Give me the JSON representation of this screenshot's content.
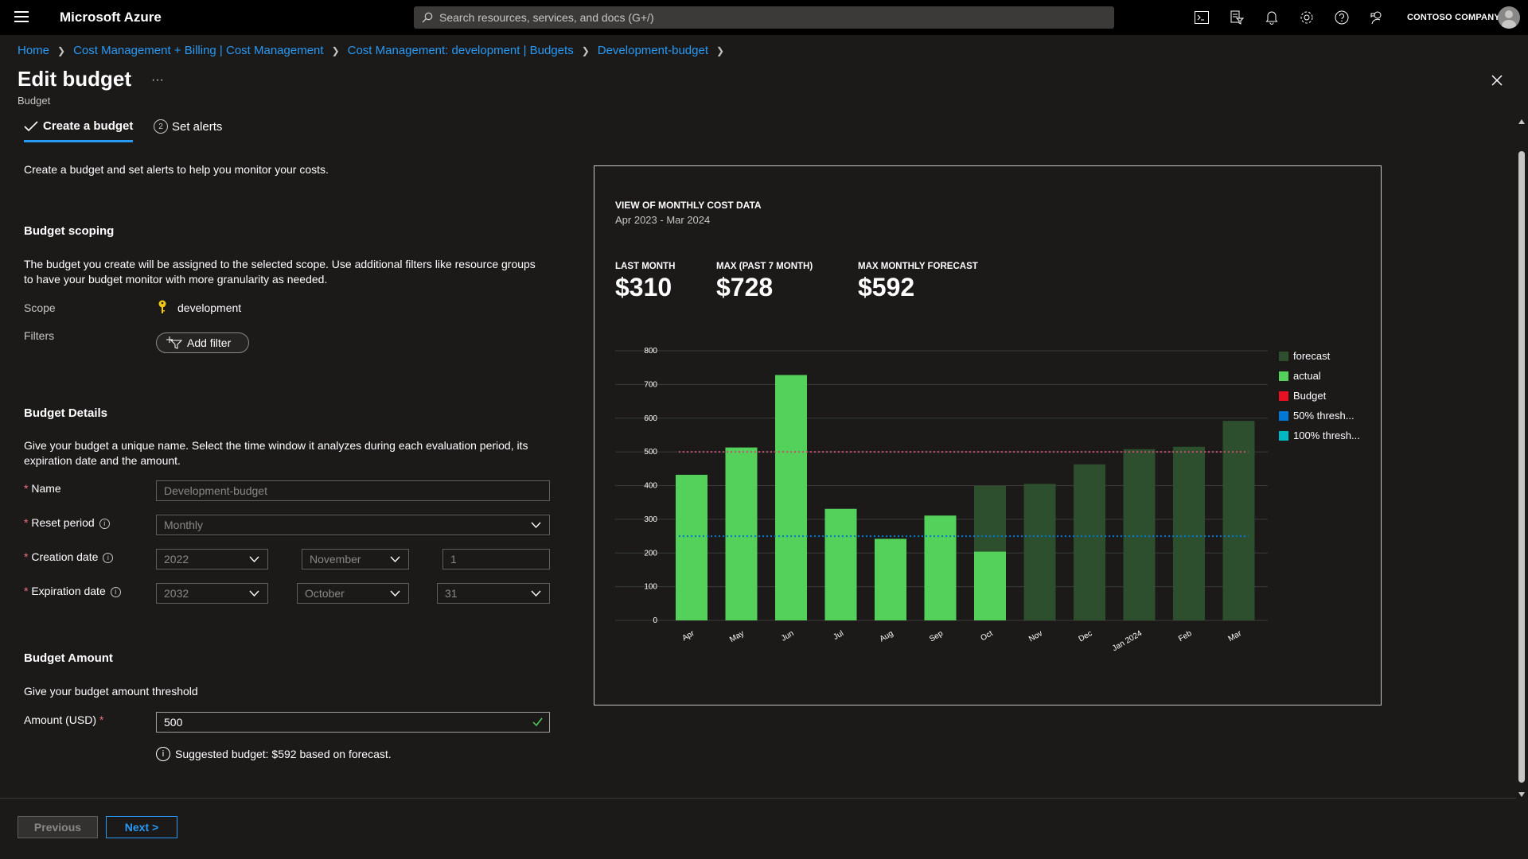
{
  "topbar": {
    "brand": "Microsoft Azure",
    "search_placeholder": "Search resources, services, and docs (G+/)",
    "tenant": "CONTOSO COMPANY",
    "icons": [
      "cloud-shell-icon",
      "directory-filter-icon",
      "notifications-icon",
      "settings-icon",
      "help-icon",
      "feedback-icon"
    ]
  },
  "breadcrumb": [
    "Home",
    "Cost Management + Billing | Cost Management",
    "Cost Management: development | Budgets",
    "Development-budget"
  ],
  "page": {
    "title": "Edit budget",
    "more": "···",
    "subtitle": "Budget"
  },
  "tabs": [
    {
      "label": "Create a budget",
      "state": "completed"
    },
    {
      "label": "Set alerts",
      "step": "2"
    }
  ],
  "intro": "Create a budget and set alerts to help you monitor your costs.",
  "scoping": {
    "title": "Budget scoping",
    "description_line1": "The budget you create will be assigned to the selected scope. Use additional filters like resource groups",
    "description_line2": "to have your budget monitor with more granularity as needed.",
    "scope_label": "Scope",
    "scope_value": "development",
    "filters_label": "Filters",
    "add_filter": "Add filter"
  },
  "details": {
    "title": "Budget Details",
    "description_line1": "Give your budget a unique name. Select the time window it analyzes during each evaluation period, its",
    "description_line2": "expiration date and the amount.",
    "name_label": "Name",
    "name_value": "Development-budget",
    "reset_label": "Reset period",
    "reset_value": "Monthly",
    "creation_label": "Creation date",
    "creation_year": "2022",
    "creation_month": "November",
    "creation_day": "1",
    "expiration_label": "Expiration date",
    "expiration_year": "2032",
    "expiration_month": "October",
    "expiration_day": "31"
  },
  "amount": {
    "title": "Budget Amount",
    "description": "Give your budget amount threshold",
    "label": "Amount (USD)",
    "value": "500",
    "suggestion": "Suggested budget: $592 based on forecast."
  },
  "chart_panel": {
    "title": "VIEW OF MONTHLY COST DATA",
    "range": "Apr 2023 - Mar 2024",
    "kpis": [
      {
        "label": "LAST MONTH",
        "value": "$310"
      },
      {
        "label": "MAX (PAST 7 MONTH)",
        "value": "$728"
      },
      {
        "label": "MAX MONTHLY FORECAST",
        "value": "$592"
      }
    ]
  },
  "chart_data": {
    "type": "bar",
    "categories": [
      "Apr",
      "May",
      "Jun",
      "Jul",
      "Aug",
      "Sep",
      "Oct",
      "Nov",
      "Dec",
      "Jan 2024",
      "Feb",
      "Mar"
    ],
    "series": [
      {
        "name": "actual",
        "values": [
          432,
          513,
          728,
          331,
          242,
          311,
          204,
          null,
          null,
          null,
          null,
          null
        ]
      },
      {
        "name": "forecast",
        "values": [
          null,
          null,
          null,
          null,
          null,
          null,
          399,
          405,
          463,
          508,
          515,
          592
        ]
      }
    ],
    "budget": 500,
    "threshold_50": 250,
    "ylim": [
      0,
      800
    ],
    "yticks": [
      0,
      100,
      200,
      300,
      400,
      500,
      600,
      700,
      800
    ],
    "legend": [
      "forecast",
      "actual",
      "Budget",
      "50% thresh...",
      "100% thresh..."
    ],
    "legend_position": "right",
    "colors": {
      "forecast": "#2d4f2e",
      "actual": "#54d15a",
      "Budget": "#e81123",
      "50% thresh...": "#0078d4",
      "100% thresh...": "#00b7c3"
    },
    "grid": true
  },
  "footer": {
    "previous": "Previous",
    "next": "Next >"
  }
}
